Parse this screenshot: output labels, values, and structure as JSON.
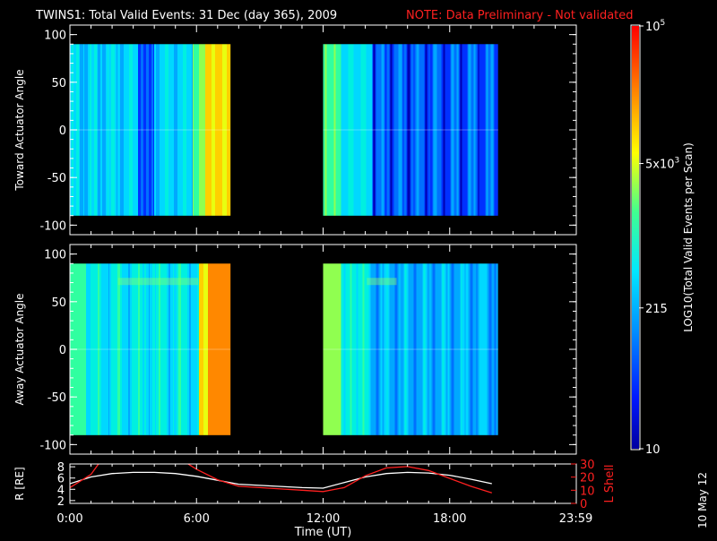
{
  "title": {
    "main": "TWINS1: Total Valid Events: 31 Dec (day 365), 2009",
    "note": "NOTE: Data Preliminary - Not validated"
  },
  "date_stamp": "10 May 12",
  "colors": {
    "background": "#000000",
    "axes": "#ffffff",
    "note": "#ff2020",
    "r_line": "#ffffff",
    "lshell_line": "#ff2020"
  },
  "chart_data": [
    {
      "type": "heatmap",
      "panel": "toward",
      "ylabel": "Toward Actuator Angle",
      "ylim": [
        -110,
        110
      ],
      "yticks": [
        "100",
        "50",
        "0",
        "-50",
        "-100"
      ],
      "xlim": [
        0,
        24
      ],
      "data_blocks": [
        {
          "x_start": 0.0,
          "x_end": 7.6,
          "y_start": -90,
          "y_end": 90
        },
        {
          "x_start": 12.0,
          "x_end": 20.3,
          "y_start": -90,
          "y_end": 90
        }
      ]
    },
    {
      "type": "heatmap",
      "panel": "away",
      "ylabel": "Away Actuator Angle",
      "ylim": [
        -110,
        110
      ],
      "yticks": [
        "100",
        "50",
        "0",
        "-50",
        "-100"
      ],
      "xlim": [
        0,
        24
      ],
      "data_blocks": [
        {
          "x_start": 0.0,
          "x_end": 7.6,
          "y_start": -90,
          "y_end": 90
        },
        {
          "x_start": 12.0,
          "x_end": 20.3,
          "y_start": -90,
          "y_end": 90
        }
      ]
    },
    {
      "type": "line",
      "panel": "orbit",
      "ylabel_left": "R [RE]",
      "ylabel_right": "L Shell",
      "xlabel": "Time (UT)",
      "xticks": [
        "0:00",
        "6:00",
        "12:00",
        "18:00",
        "23:59"
      ],
      "xtick_values": [
        0,
        6,
        12,
        18,
        23.98
      ],
      "left_ylim": [
        1.5,
        8.5
      ],
      "left_yticks": [
        "8",
        "6",
        "4",
        "2"
      ],
      "right_ylim": [
        0,
        30
      ],
      "right_yticks": [
        "30",
        "20",
        "10",
        "0"
      ],
      "series": [
        {
          "axis": "left",
          "color": "#ffffff",
          "x": [
            0,
            1,
            2,
            3,
            4,
            5,
            6,
            7,
            8,
            9,
            10,
            11,
            12,
            13,
            14,
            15,
            16,
            17,
            18,
            19,
            20
          ],
          "y": [
            5.0,
            6.2,
            6.8,
            7.0,
            7.0,
            6.8,
            6.3,
            5.6,
            4.9,
            4.7,
            4.5,
            4.3,
            4.2,
            5.2,
            6.2,
            6.8,
            7.0,
            6.9,
            6.5,
            5.8,
            5.0
          ]
        },
        {
          "axis": "right",
          "color": "#ff2020",
          "x": [
            0,
            1,
            1.4,
            5.5,
            6,
            7,
            8,
            9,
            10,
            11,
            12,
            13,
            14,
            15,
            16,
            17,
            18,
            19,
            20
          ],
          "y": [
            12,
            22,
            31,
            31,
            26,
            18,
            13,
            12,
            11,
            10,
            9,
            12,
            21,
            27,
            28,
            25,
            19,
            13,
            8
          ]
        }
      ]
    }
  ],
  "colorbar": {
    "label": "LOG10(Total Valid Events per Scan)",
    "ticks": [
      {
        "text": "10",
        "sup": "5",
        "value": 100000
      },
      {
        "text": "5x10",
        "sup": "3",
        "value": 5000
      },
      {
        "text": "215",
        "sup": "",
        "value": 215
      },
      {
        "text": "10",
        "sup": "",
        "value": 10
      }
    ],
    "range": [
      10,
      100000
    ],
    "scale": "log"
  }
}
